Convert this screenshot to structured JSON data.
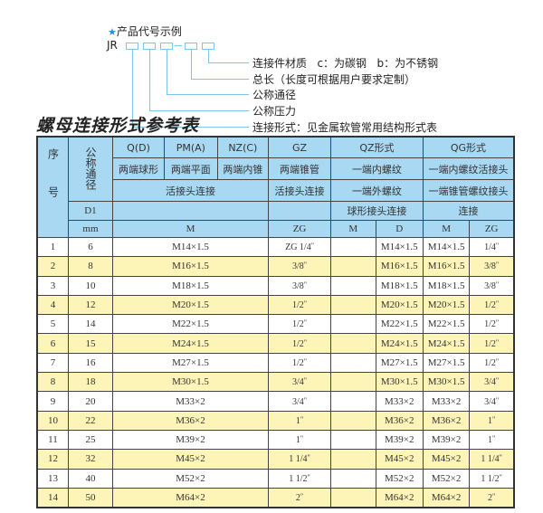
{
  "code_example": {
    "title": "产品代号示例",
    "prefix": "JR",
    "descriptions": [
      "连接件材质   c：为碳钢   b：为不锈钢",
      "总长（长度可根据用户要求定制）",
      "公称通径",
      "公称压力",
      "连接形式：见金属软管常用结构形式表"
    ]
  },
  "table_title": "螺母连接形式参考表",
  "header": {
    "seq": "序号",
    "nominal": "公称通径",
    "qd": "Q(D)",
    "pm": "PM(A)",
    "nz": "NZ(C)",
    "gz": "GZ",
    "qz": "QZ形式",
    "qg": "QG形式",
    "qd_desc": "两端球形",
    "pm_desc": "两端平面",
    "nz_desc": "两端内锥",
    "gz_desc": "两端锥管",
    "qz_desc1": "一端内螺纹",
    "qg_desc1": "一端内螺纹活接头",
    "union": "活接头连接",
    "gz_union": "活接头连接",
    "qz_desc2": "一端外螺纹",
    "qg_desc2": "一端锥管螺纹接头",
    "d1": "D1",
    "qz_desc3": "球形接头连接",
    "qg_desc3": "连接",
    "mm": "mm",
    "m": "M",
    "zg": "ZG",
    "qz_m": "M",
    "qz_d": "D",
    "qg_m": "M",
    "qg_zg": "ZG"
  },
  "rows": [
    {
      "no": "1",
      "dn": "6",
      "m": "M14×1.5",
      "zg": "ZG 1/4",
      "qz_m": "",
      "qz_d": "M14×1.5",
      "qg_m": "M14×1.5",
      "qg_zg": "1/4"
    },
    {
      "no": "2",
      "dn": "8",
      "m": "M16×1.5",
      "zg": "3/8",
      "qz_m": "",
      "qz_d": "M16×1.5",
      "qg_m": "M16×1.5",
      "qg_zg": "3/8"
    },
    {
      "no": "3",
      "dn": "10",
      "m": "M18×1.5",
      "zg": "3/8",
      "qz_m": "",
      "qz_d": "M18×1.5",
      "qg_m": "M18×1.5",
      "qg_zg": "3/8"
    },
    {
      "no": "4",
      "dn": "12",
      "m": "M20×1.5",
      "zg": "1/2",
      "qz_m": "",
      "qz_d": "M20×1.5",
      "qg_m": "M20×1.5",
      "qg_zg": "1/2"
    },
    {
      "no": "5",
      "dn": "14",
      "m": "M22×1.5",
      "zg": "1/2",
      "qz_m": "",
      "qz_d": "M22×1.5",
      "qg_m": "M22×1.5",
      "qg_zg": "1/2"
    },
    {
      "no": "6",
      "dn": "15",
      "m": "M24×1.5",
      "zg": "1/2",
      "qz_m": "",
      "qz_d": "M24×1.5",
      "qg_m": "M24×1.5",
      "qg_zg": "1/2"
    },
    {
      "no": "7",
      "dn": "16",
      "m": "M27×1.5",
      "zg": "1/2",
      "qz_m": "",
      "qz_d": "M27×1.5",
      "qg_m": "M27×1.5",
      "qg_zg": "1/2"
    },
    {
      "no": "8",
      "dn": "18",
      "m": "M30×1.5",
      "zg": "3/4",
      "qz_m": "",
      "qz_d": "M30×1.5",
      "qg_m": "M30×1.5",
      "qg_zg": "3/4"
    },
    {
      "no": "9",
      "dn": "20",
      "m": "M33×2",
      "zg": "3/4",
      "qz_m": "",
      "qz_d": "M33×2",
      "qg_m": "M33×2",
      "qg_zg": "3/4"
    },
    {
      "no": "10",
      "dn": "22",
      "m": "M36×2",
      "zg": "1",
      "qz_m": "",
      "qz_d": "M36×2",
      "qg_m": "M36×2",
      "qg_zg": "1"
    },
    {
      "no": "11",
      "dn": "25",
      "m": "M39×2",
      "zg": "1",
      "qz_m": "",
      "qz_d": "M39×2",
      "qg_m": "M39×2",
      "qg_zg": "1"
    },
    {
      "no": "12",
      "dn": "32",
      "m": "M45×2",
      "zg": "1 1/4",
      "qz_m": "",
      "qz_d": "M45×2",
      "qg_m": "M45×2",
      "qg_zg": "1 1/4"
    },
    {
      "no": "13",
      "dn": "40",
      "m": "M52×2",
      "zg": "1 1/2",
      "qz_m": "",
      "qz_d": "M52×2",
      "qg_m": "M52×2",
      "qg_zg": "1 1/2"
    },
    {
      "no": "14",
      "dn": "50",
      "m": "M64×2",
      "zg": "2",
      "qz_m": "",
      "qz_d": "M64×2",
      "qg_m": "M64×2",
      "qg_zg": "2"
    }
  ],
  "colors": {
    "header_bg": "#a9d8f2",
    "alt_row_bg": "#fdf4b8",
    "line_color": "#7fc6e6",
    "star": "#2a8fd0"
  }
}
